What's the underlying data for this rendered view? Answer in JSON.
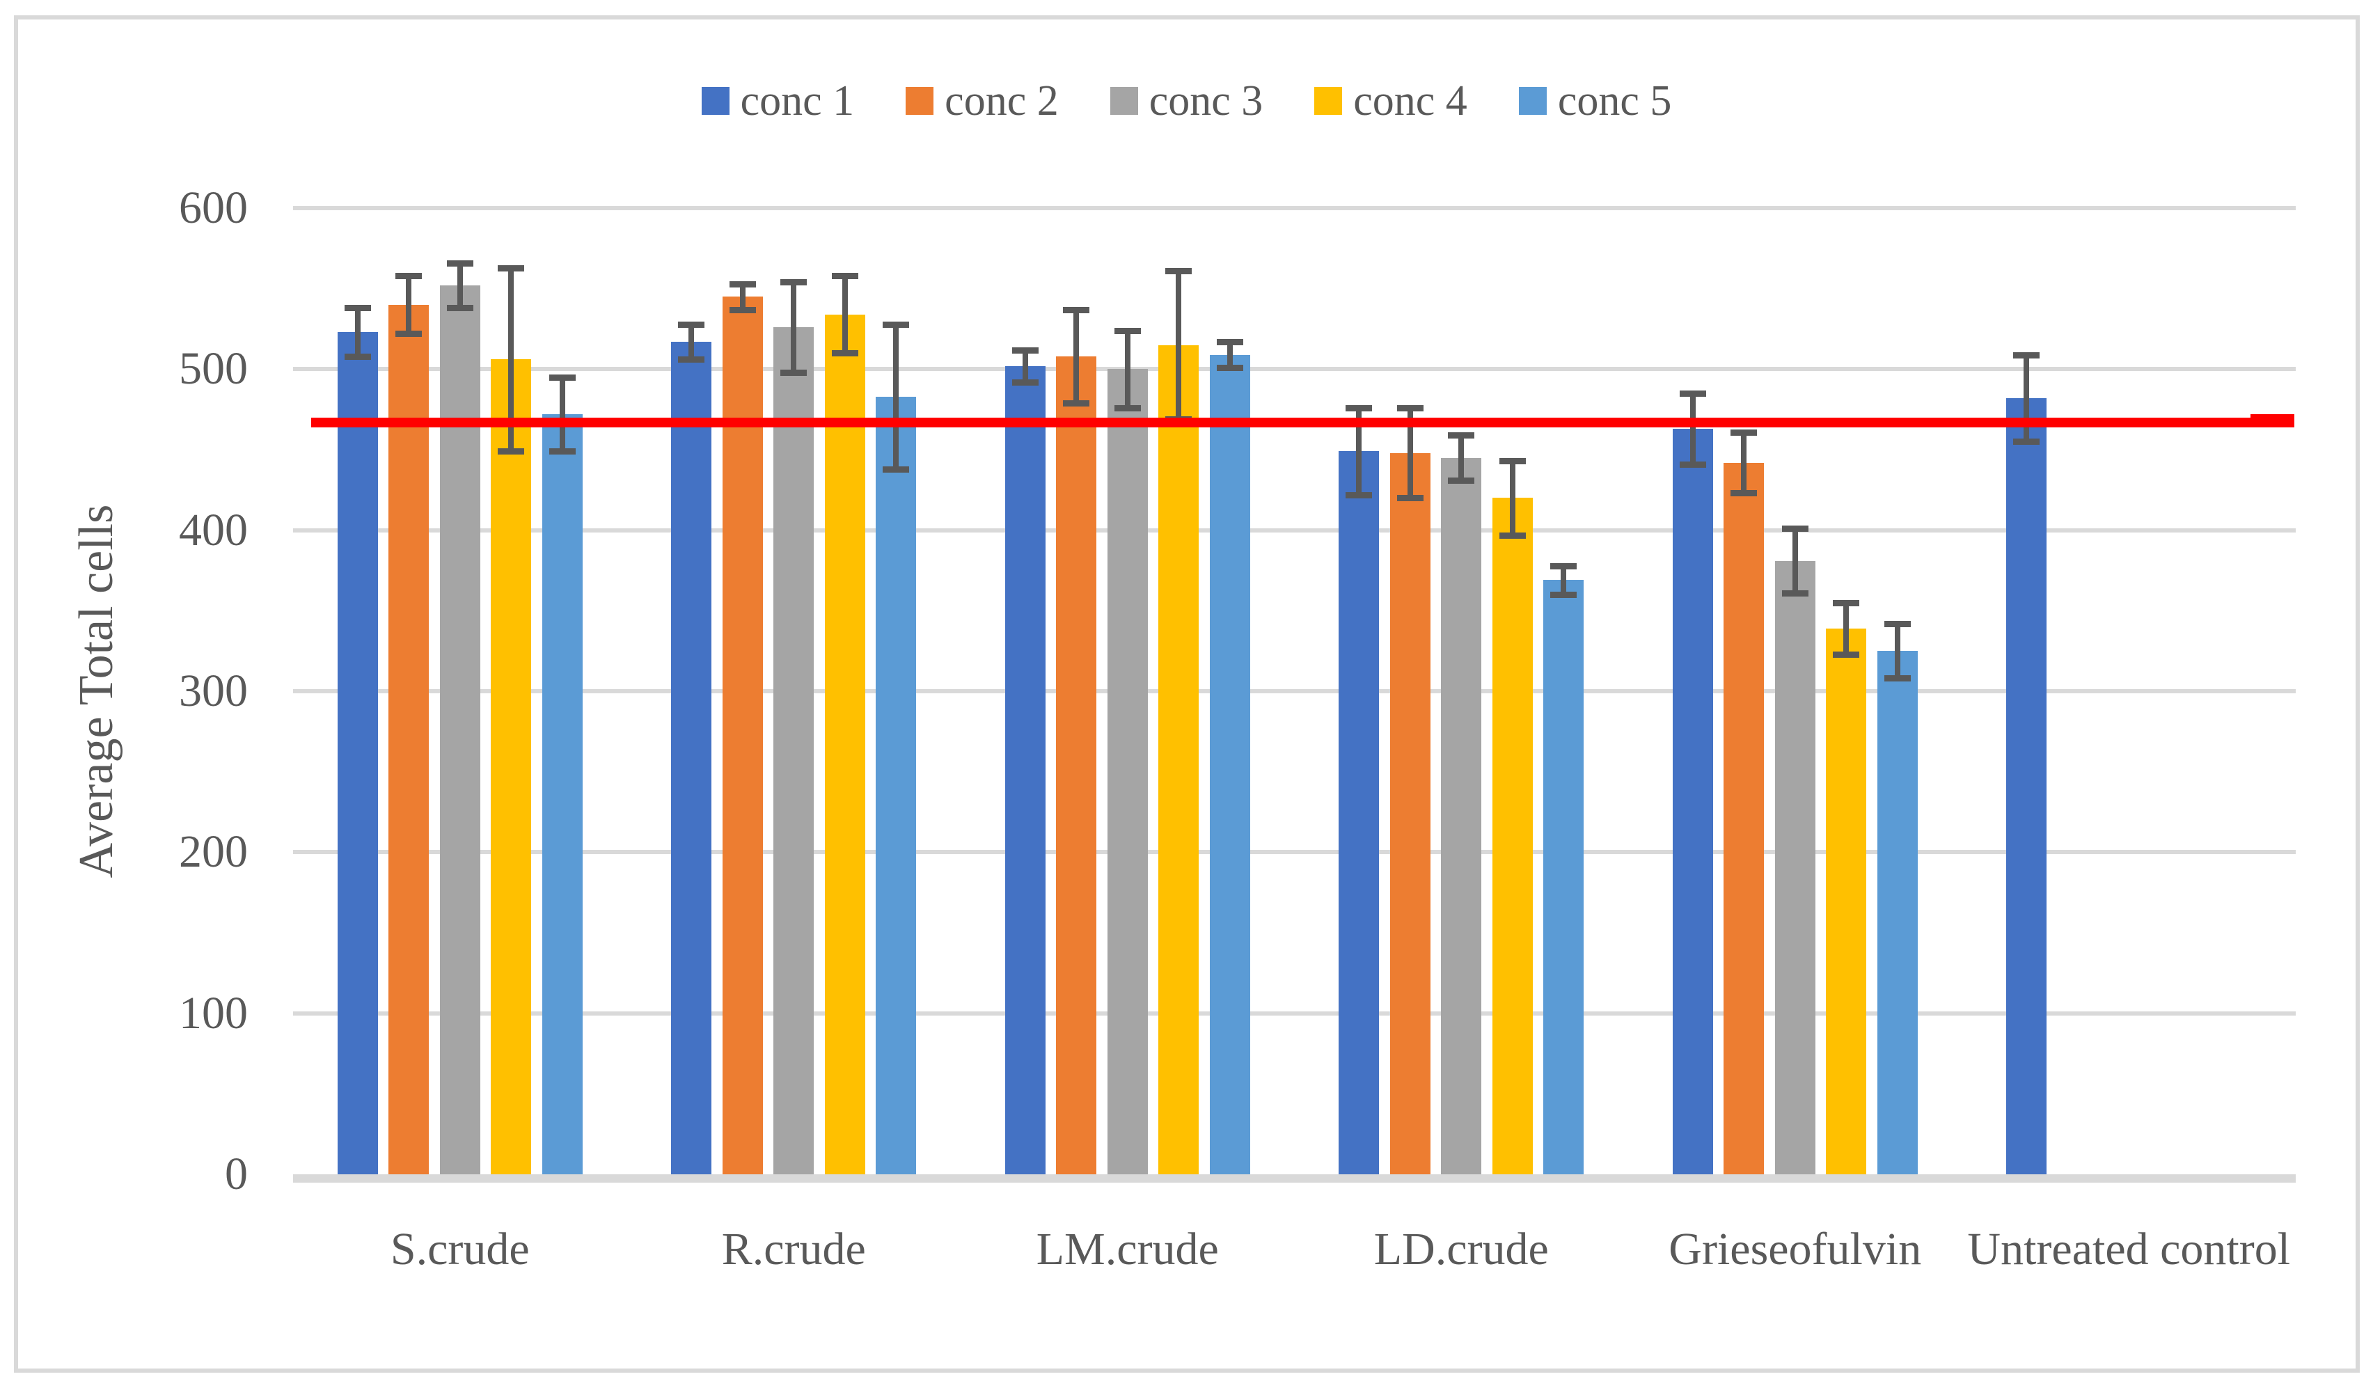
{
  "figure": {
    "background": "#FFFFFF",
    "border_color": "#D9D9D9"
  },
  "axes": {
    "y_ticks": [
      "0",
      "100",
      "200",
      "300",
      "400",
      "500",
      "600"
    ]
  },
  "chart_data": {
    "type": "bar",
    "title": "",
    "xlabel": "",
    "ylabel": "Average Total cells",
    "ylim": [
      0,
      600
    ],
    "ytick_interval": 100,
    "grid": true,
    "legend_position": "top",
    "error_bars": true,
    "categories": [
      "S.crude",
      "R.crude",
      "LM.crude",
      "LD.crude",
      "Grieseofulvin",
      "Untreated control"
    ],
    "series": [
      {
        "name": "conc 1",
        "color": "#4472C4",
        "values": [
          523,
          517,
          502,
          449,
          463,
          482
        ],
        "errors": [
          15,
          11,
          10,
          27,
          22,
          27
        ]
      },
      {
        "name": "conc 2",
        "color": "#ED7D31",
        "values": [
          540,
          545,
          508,
          448,
          442,
          null
        ],
        "errors": [
          18,
          8,
          29,
          28,
          19,
          null
        ]
      },
      {
        "name": "conc 3",
        "color": "#A5A5A5",
        "values": [
          552,
          526,
          500,
          445,
          381,
          null
        ],
        "errors": [
          14,
          28,
          24,
          14,
          20,
          null
        ]
      },
      {
        "name": "conc 4",
        "color": "#FFC000",
        "values": [
          506,
          534,
          515,
          420,
          339,
          null
        ],
        "errors": [
          57,
          24,
          46,
          23,
          16,
          null
        ]
      },
      {
        "name": "conc 5",
        "color": "#5B9BD5",
        "values": [
          472,
          483,
          509,
          369,
          325,
          null
        ],
        "errors": [
          23,
          45,
          8,
          9,
          17,
          null
        ]
      }
    ],
    "reference_line": {
      "value": 467,
      "color": "#FF0000"
    },
    "style_colors": {
      "error_bar": "#595959",
      "gridline": "#D9D9D9",
      "text": "#595959"
    }
  }
}
